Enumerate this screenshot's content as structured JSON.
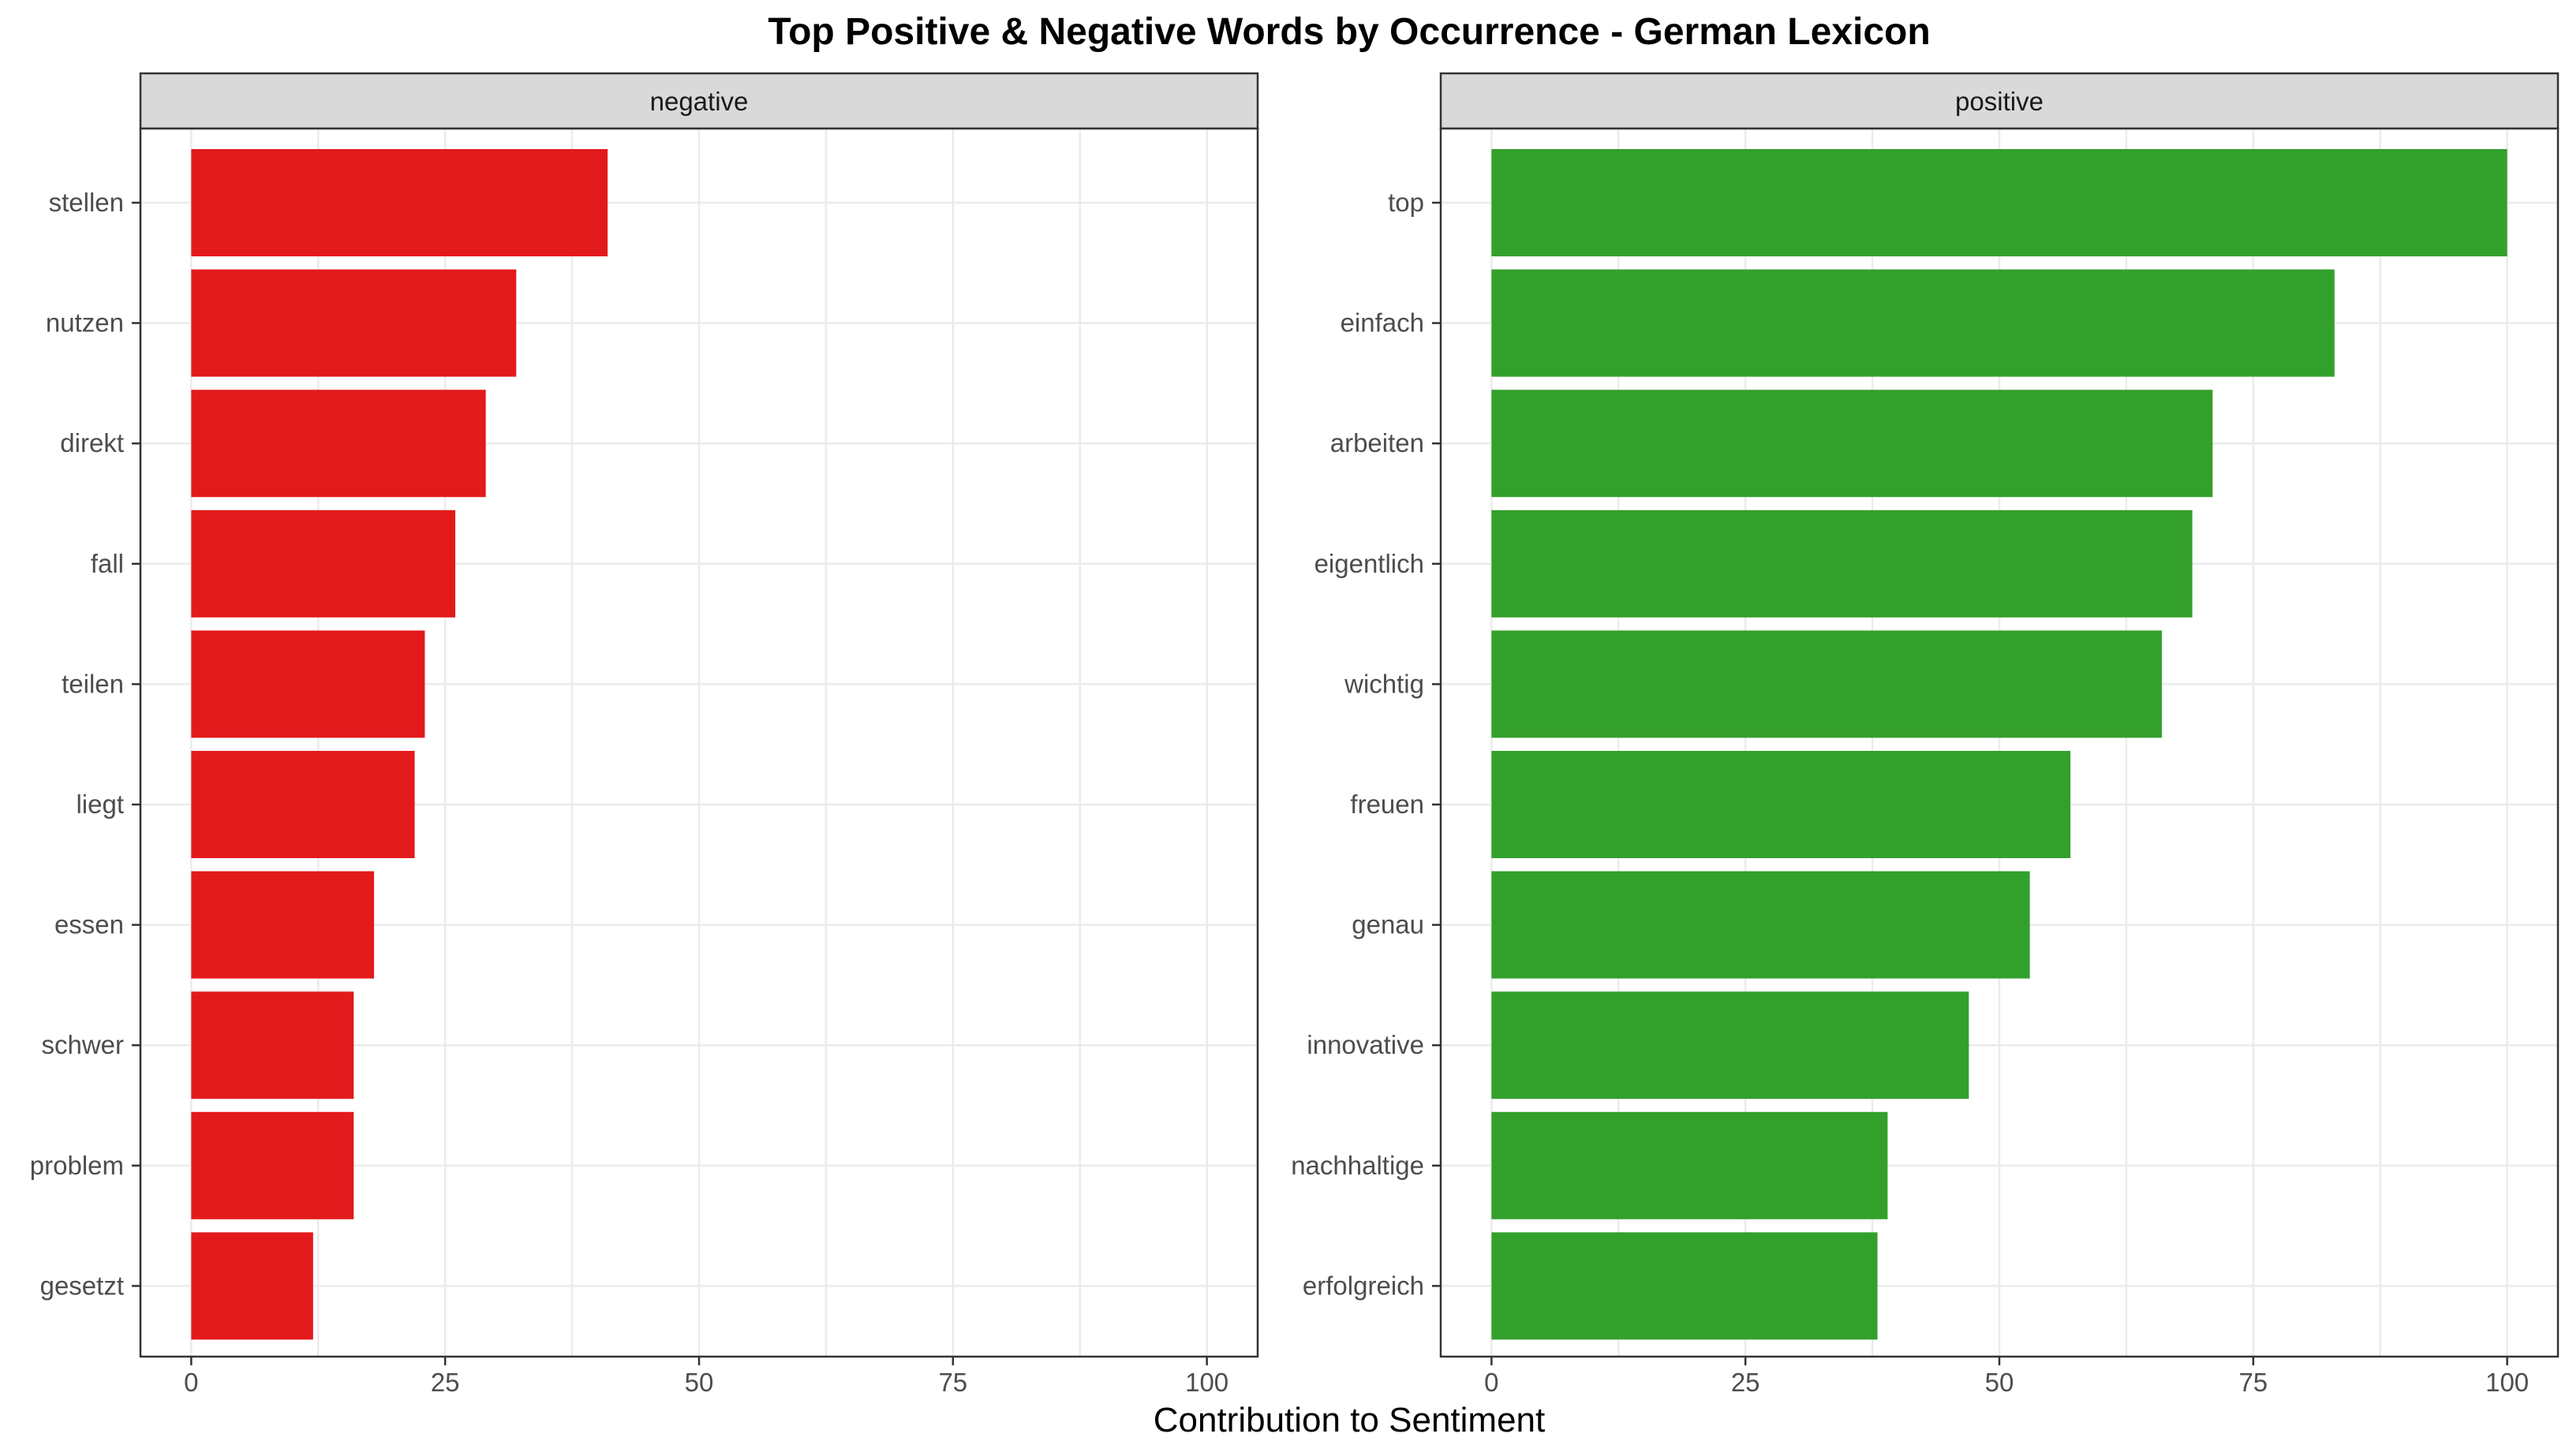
{
  "chart_data": {
    "type": "bar",
    "orientation": "horizontal",
    "title": "Top Positive & Negative Words by Occurrence - German Lexicon",
    "xlabel": "Contribution to Sentiment",
    "ylabel": "",
    "xlim": [
      0,
      100
    ],
    "xticks": [
      "0",
      "25",
      "50",
      "75",
      "100"
    ],
    "panels": [
      {
        "name": "negative",
        "color": "#e31a1c",
        "categories": [
          "stellen",
          "nutzen",
          "direkt",
          "fall",
          "teilen",
          "liegt",
          "essen",
          "schwer",
          "problem",
          "gesetzt"
        ],
        "values": [
          41,
          32,
          29,
          26,
          23,
          22,
          18,
          16,
          16,
          12
        ]
      },
      {
        "name": "positive",
        "color": "#33a02c",
        "categories": [
          "top",
          "einfach",
          "arbeiten",
          "eigentlich",
          "wichtig",
          "freuen",
          "genau",
          "innovative",
          "nachhaltige",
          "erfolgreich"
        ],
        "values": [
          100,
          83,
          71,
          69,
          66,
          57,
          53,
          47,
          39,
          38
        ]
      }
    ]
  }
}
